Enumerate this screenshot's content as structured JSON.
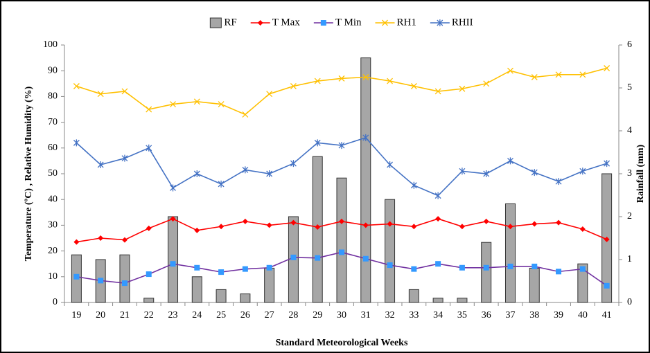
{
  "chart_data": {
    "type": "bar-line",
    "categories": [
      "19",
      "20",
      "21",
      "22",
      "23",
      "24",
      "25",
      "26",
      "27",
      "28",
      "29",
      "30",
      "31",
      "32",
      "33",
      "34",
      "35",
      "36",
      "37",
      "38",
      "39",
      "40",
      "41"
    ],
    "series": [
      {
        "name": "RF",
        "type": "bar",
        "axis": "y2",
        "color": "#a6a6a6",
        "values": [
          1.11,
          1.0,
          1.11,
          0.1,
          2.0,
          0.6,
          0.3,
          0.2,
          0.8,
          2.0,
          3.4,
          2.9,
          5.7,
          2.4,
          0.3,
          0.1,
          0.1,
          1.4,
          2.3,
          0.8,
          0,
          0.9,
          3.0
        ]
      },
      {
        "name": "T Max",
        "type": "line",
        "color": "#ff0000",
        "marker": "diamond",
        "marker_color": "#ff0000",
        "values": [
          23.5,
          25,
          24.3,
          28.8,
          32.5,
          28,
          29.5,
          31.5,
          30,
          31,
          29.3,
          31.5,
          30,
          30.5,
          29.5,
          32.5,
          29.5,
          31.5,
          29.5,
          30.5,
          31,
          28.5,
          24.5
        ]
      },
      {
        "name": "T Min",
        "type": "line",
        "color": "#7030a0",
        "marker": "square",
        "marker_color": "#3399ff",
        "values": [
          10,
          8.5,
          7.5,
          11,
          15,
          13.5,
          11.8,
          13,
          13.5,
          17.5,
          17.3,
          19.5,
          17,
          14.5,
          13,
          15,
          13.5,
          13.5,
          14,
          14,
          12,
          13,
          6.5
        ]
      },
      {
        "name": "RH1",
        "type": "line",
        "color": "#ffc000",
        "marker": "x",
        "marker_color": "#ffc000",
        "values": [
          84,
          81,
          82,
          75,
          77,
          78,
          77,
          73,
          81,
          84,
          86,
          87,
          87.5,
          86,
          84,
          82,
          83,
          85,
          90,
          87.5,
          88.5,
          88.5,
          91
        ]
      },
      {
        "name": "RHII",
        "type": "line",
        "color": "#4472c4",
        "marker": "star",
        "marker_color": "#4472c4",
        "values": [
          62,
          53.5,
          56,
          60,
          44.5,
          50,
          46,
          51.5,
          50,
          54,
          62,
          61,
          64,
          53.5,
          45.5,
          41.5,
          51,
          50,
          55,
          50.5,
          47,
          51,
          54
        ]
      }
    ],
    "ylim": [
      0,
      100
    ],
    "yticks": [
      0,
      10,
      20,
      30,
      40,
      50,
      60,
      70,
      80,
      90,
      100
    ],
    "y2lim": [
      0,
      6
    ],
    "y2ticks": [
      0,
      1,
      2,
      3,
      4,
      5,
      6
    ],
    "y_label": "Temperature (ºC) , Relative Humidity (%)",
    "y2_label": "Rainfall (mm)",
    "x_label": "Standard Meteorological Weeks",
    "legend": "top"
  }
}
